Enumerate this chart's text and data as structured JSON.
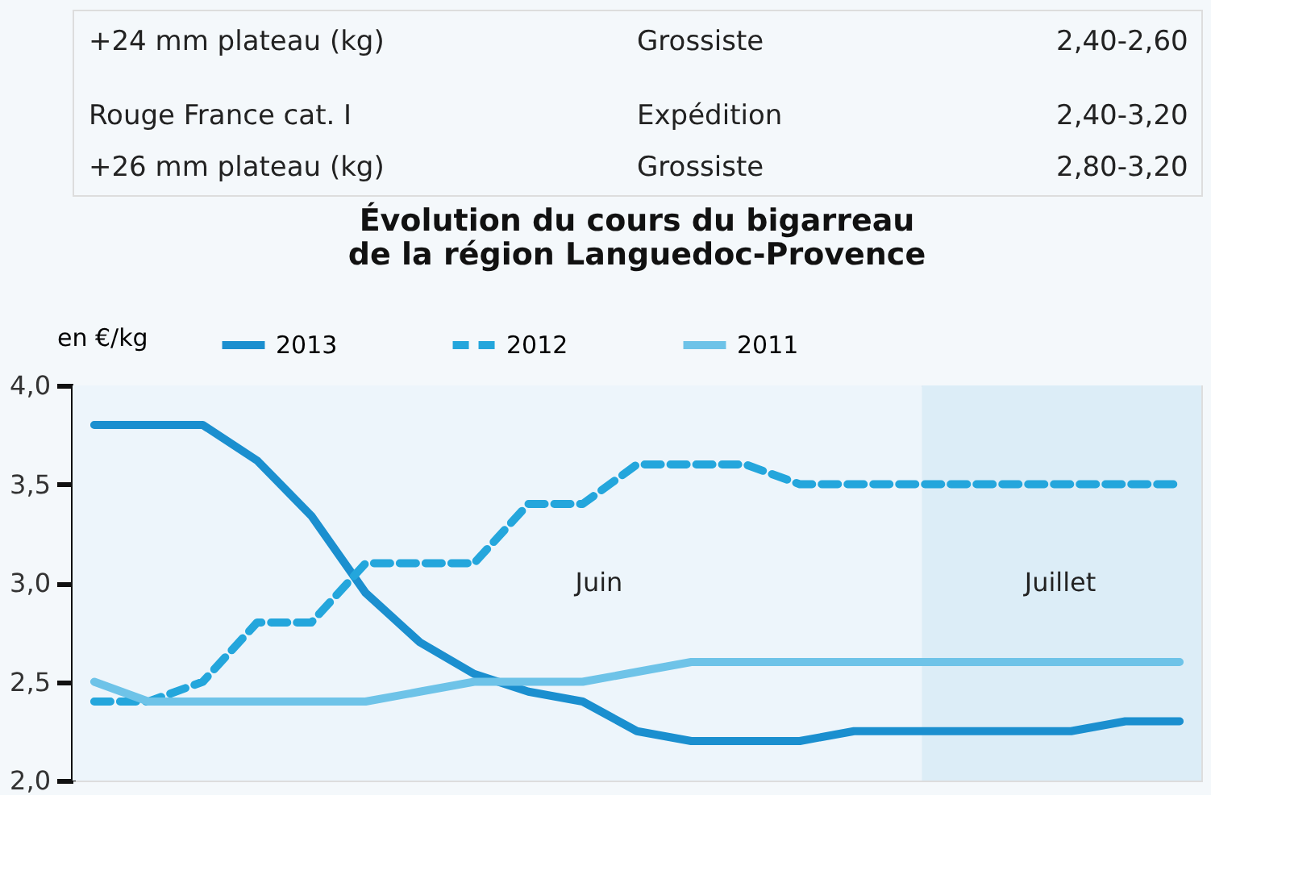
{
  "chart_data": {
    "type": "line",
    "title": "Évolution du cours du bigarreau\nde la région Languedoc-Provence",
    "ylabel": "en €/kg",
    "categories": [
      null,
      null,
      null,
      null,
      null,
      null,
      null,
      null,
      null,
      null,
      null,
      null,
      null,
      null,
      null,
      null,
      null,
      null,
      null,
      null,
      null
    ],
    "series": [
      {
        "name": "2013",
        "color": "#1b8fcf",
        "line_style": "solid",
        "values": [
          3.8,
          3.8,
          3.8,
          3.62,
          3.34,
          2.95,
          2.7,
          2.54,
          2.45,
          2.4,
          2.25,
          2.2,
          2.2,
          2.2,
          2.25,
          2.25,
          2.25,
          2.25,
          2.25,
          2.3,
          2.3
        ]
      },
      {
        "name": "2012",
        "color": "#24a6dc",
        "line_style": "dashed",
        "values": [
          2.4,
          2.4,
          2.5,
          2.8,
          2.8,
          3.1,
          3.1,
          3.1,
          3.4,
          3.4,
          3.6,
          3.6,
          3.6,
          3.5,
          3.5,
          3.5,
          3.5,
          3.5,
          3.5,
          3.5,
          3.5
        ]
      },
      {
        "name": "2011",
        "color": "#6ec3e8",
        "line_style": "solid",
        "values": [
          2.5,
          2.4,
          2.4,
          2.4,
          2.4,
          2.4,
          2.45,
          2.5,
          2.5,
          2.5,
          2.55,
          2.6,
          2.6,
          2.6,
          2.6,
          2.6,
          2.6,
          2.6,
          2.6,
          2.6,
          2.6
        ]
      }
    ],
    "ylim": [
      2.0,
      4.0
    ],
    "yticks": [
      {
        "value": 2.0,
        "label": "2,0"
      },
      {
        "value": 2.5,
        "label": "2,5"
      },
      {
        "value": 3.0,
        "label": "3,0"
      },
      {
        "value": 3.5,
        "label": "3,5"
      },
      {
        "value": 4.0,
        "label": "4,0"
      }
    ],
    "annotations": [
      "+24 mm plateau (kg)",
      "Grossiste",
      "2,40-2,60",
      "Rouge France cat. I",
      "Expédition",
      "2,40-3,20",
      "+26 mm plateau (kg)",
      "Grossiste",
      "2,80-3,20",
      "Juin",
      "Juillet"
    ],
    "grid": false,
    "legend": "top",
    "tick_labels": "y"
  }
}
